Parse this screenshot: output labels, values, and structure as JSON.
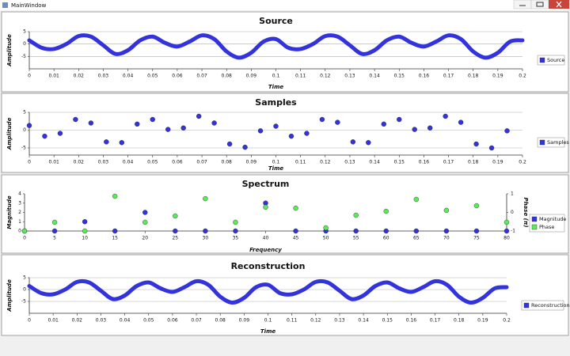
{
  "window_title": "MainWindow",
  "chart_data": [
    {
      "type": "line",
      "title": "Source",
      "x_label": "Time",
      "y_label": "Amplitude",
      "x": [
        0,
        0.005,
        0.01,
        0.015,
        0.02,
        0.025,
        0.03,
        0.035,
        0.04,
        0.045,
        0.05,
        0.055,
        0.06,
        0.065,
        0.07,
        0.075,
        0.08,
        0.085,
        0.09,
        0.095,
        0.1,
        0.105,
        0.11,
        0.115,
        0.12,
        0.125,
        0.13,
        0.135,
        0.14,
        0.145,
        0.15,
        0.155,
        0.16,
        0.165,
        0.17,
        0.175,
        0.18,
        0.185,
        0.19,
        0.195,
        0.2
      ],
      "series": [
        {
          "name": "Source",
          "color": "#3333dd",
          "values": [
            1.5,
            -1.5,
            -2,
            0,
            3.2,
            3,
            -0.5,
            -4,
            -2.5,
            1.5,
            3,
            0.5,
            -1,
            1,
            3.5,
            2,
            -3,
            -5.5,
            -3.5,
            1,
            2,
            -1.5,
            -2,
            0,
            3.2,
            3,
            -0.5,
            -4,
            -2.5,
            1.5,
            3,
            0.5,
            -1,
            1,
            3.5,
            2,
            -3,
            -5.5,
            -3.5,
            1,
            1.5
          ]
        }
      ],
      "xlim": [
        0,
        0.2
      ],
      "xticks": [
        0,
        0.01,
        0.02,
        0.03,
        0.04,
        0.05,
        0.06,
        0.07,
        0.08,
        0.09,
        0.1,
        0.11,
        0.12,
        0.13,
        0.14,
        0.15,
        0.16,
        0.17,
        0.18,
        0.19,
        0.2
      ],
      "ylim": [
        -10,
        5
      ],
      "yticks": [
        -5,
        0,
        5
      ],
      "grid": true
    },
    {
      "type": "scatter",
      "title": "Samples",
      "x_label": "Time",
      "y_label": "Amplitude",
      "x": [
        0,
        0.00625,
        0.0125,
        0.01875,
        0.025,
        0.03125,
        0.0375,
        0.04375,
        0.05,
        0.05625,
        0.0625,
        0.06875,
        0.075,
        0.08125,
        0.0875,
        0.09375,
        0.1,
        0.10625,
        0.1125,
        0.11875,
        0.125,
        0.13125,
        0.1375,
        0.14375,
        0.15,
        0.15625,
        0.1625,
        0.16875,
        0.175,
        0.18125,
        0.1875,
        0.19375
      ],
      "series": [
        {
          "name": "Samples",
          "color": "#3333dd",
          "values": [
            1.3,
            -1.7,
            -0.9,
            3,
            2,
            -3.3,
            -3.5,
            1.7,
            3,
            0.2,
            0.6,
            3.9,
            2,
            -3.9,
            -4.8,
            -0.2,
            1.1,
            -1.7,
            -0.9,
            3,
            2.2,
            -3.3,
            -3.5,
            1.7,
            3,
            0.2,
            0.6,
            3.9,
            2.2,
            -3.9,
            -5,
            -0.2
          ]
        }
      ],
      "xlim": [
        0,
        0.2
      ],
      "xticks": [
        0,
        0.01,
        0.02,
        0.03,
        0.04,
        0.05,
        0.06,
        0.07,
        0.08,
        0.09,
        0.1,
        0.11,
        0.12,
        0.13,
        0.14,
        0.15,
        0.16,
        0.17,
        0.18,
        0.19,
        0.2
      ],
      "ylim": [
        -7,
        5
      ],
      "yticks": [
        -5,
        0,
        5
      ],
      "grid": true
    },
    {
      "type": "scatter",
      "title": "Spectrum",
      "x_label": "Frequency",
      "y_label": "Magnitude",
      "y2_label": "Phase (π)",
      "x": [
        0,
        5,
        10,
        15,
        20,
        25,
        30,
        35,
        40,
        45,
        50,
        55,
        60,
        65,
        70,
        75,
        80
      ],
      "series": [
        {
          "name": "Magnitude",
          "color": "#3333dd",
          "values": [
            0,
            0,
            1,
            0,
            2,
            0,
            0,
            0,
            3,
            0,
            0,
            0,
            0,
            0,
            0,
            0,
            0
          ]
        },
        {
          "name": "Phase",
          "color": "#55ee55",
          "axis": "y2",
          "values": [
            -1,
            -0.53,
            -1,
            0.87,
            -0.53,
            -0.19,
            0.74,
            -0.53,
            0.28,
            0.23,
            -0.83,
            -0.15,
            0.06,
            0.7,
            0.11,
            0.36,
            -0.53
          ]
        }
      ],
      "xlim": [
        0,
        80
      ],
      "xticks": [
        0,
        5,
        10,
        15,
        20,
        25,
        30,
        35,
        40,
        45,
        50,
        55,
        60,
        65,
        70,
        75,
        80
      ],
      "ylim": [
        0,
        4
      ],
      "yticks": [
        0,
        1,
        2,
        3,
        4
      ],
      "y2lim": [
        -1,
        1
      ],
      "y2ticks": [
        -1,
        0,
        1
      ],
      "grid": false
    },
    {
      "type": "line",
      "title": "Reconstruction",
      "x_label": "Time",
      "y_label": "Amplitude",
      "x": [
        0,
        0.005,
        0.01,
        0.015,
        0.02,
        0.025,
        0.03,
        0.035,
        0.04,
        0.045,
        0.05,
        0.055,
        0.06,
        0.065,
        0.07,
        0.075,
        0.08,
        0.085,
        0.09,
        0.095,
        0.1,
        0.105,
        0.11,
        0.115,
        0.12,
        0.125,
        0.13,
        0.135,
        0.14,
        0.145,
        0.15,
        0.155,
        0.16,
        0.165,
        0.17,
        0.175,
        0.18,
        0.185,
        0.19,
        0.195,
        0.2
      ],
      "series": [
        {
          "name": "Reconstruction",
          "color": "#3333dd",
          "values": [
            1.5,
            -1.5,
            -2,
            0,
            3.2,
            3,
            -0.5,
            -4,
            -2.5,
            1.5,
            3,
            0.5,
            -1,
            1,
            3.5,
            2,
            -3,
            -5.5,
            -3.5,
            1,
            2,
            -1.5,
            -2,
            0,
            3.2,
            3,
            -0.5,
            -4,
            -2.5,
            1.5,
            3,
            0.5,
            -1,
            1,
            3.5,
            2,
            -3,
            -5.5,
            -3.5,
            0.5,
            1
          ]
        }
      ],
      "xlim": [
        0,
        0.2
      ],
      "xticks": [
        0,
        0.01,
        0.02,
        0.03,
        0.04,
        0.05,
        0.06,
        0.07,
        0.08,
        0.09,
        0.1,
        0.11,
        0.12,
        0.13,
        0.14,
        0.15,
        0.16,
        0.17,
        0.18,
        0.19,
        0.2
      ],
      "ylim": [
        -10,
        5
      ],
      "yticks": [
        -5,
        0,
        5
      ],
      "grid": true
    }
  ]
}
